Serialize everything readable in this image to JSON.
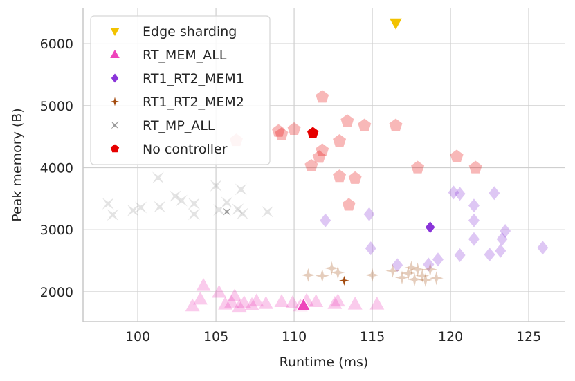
{
  "chart_data": {
    "type": "scatter",
    "title": "",
    "xlabel": "Runtime (ms)",
    "ylabel": "Peak memory (B)",
    "xlim": [
      96.5,
      127.3
    ],
    "ylim": [
      1520,
      6570
    ],
    "xticks": [
      100,
      105,
      110,
      115,
      120,
      125
    ],
    "yticks": [
      2000,
      3000,
      4000,
      5000,
      6000
    ],
    "grid": true,
    "legend_position": "top-left",
    "series": [
      {
        "name": "Edge sharding",
        "color": "#f2c200",
        "marker": "triangle-down",
        "faded_points": [],
        "highlight": {
          "x": 116.5,
          "y": 6330
        }
      },
      {
        "name": "RT_MEM_ALL",
        "color": "#ee44bb",
        "marker": "triangle-up",
        "faded_points": [
          [
            103.5,
            1770
          ],
          [
            104.0,
            1880
          ],
          [
            104.2,
            2100
          ],
          [
            105.2,
            1990
          ],
          [
            105.6,
            1800
          ],
          [
            106.0,
            1830
          ],
          [
            106.2,
            1930
          ],
          [
            106.5,
            1760
          ],
          [
            106.8,
            1820
          ],
          [
            107.3,
            1790
          ],
          [
            107.6,
            1850
          ],
          [
            108.2,
            1810
          ],
          [
            109.2,
            1840
          ],
          [
            109.9,
            1820
          ],
          [
            110.4,
            1770
          ],
          [
            110.8,
            1860
          ],
          [
            111.4,
            1840
          ],
          [
            112.6,
            1810
          ],
          [
            112.8,
            1850
          ],
          [
            113.9,
            1800
          ],
          [
            115.3,
            1800
          ]
        ],
        "highlight": {
          "x": 110.6,
          "y": 1780
        }
      },
      {
        "name": "RT1_RT2_MEM1",
        "color": "#8a35d9",
        "marker": "diamond",
        "faded_points": [
          [
            112.0,
            3150
          ],
          [
            114.8,
            3250
          ],
          [
            114.9,
            2700
          ],
          [
            116.6,
            2430
          ],
          [
            118.6,
            2440
          ],
          [
            119.2,
            2520
          ],
          [
            120.2,
            3600
          ],
          [
            120.6,
            3580
          ],
          [
            120.6,
            2590
          ],
          [
            121.5,
            3390
          ],
          [
            121.5,
            3150
          ],
          [
            121.5,
            2850
          ],
          [
            122.5,
            2600
          ],
          [
            122.8,
            3590
          ],
          [
            123.2,
            2660
          ],
          [
            123.3,
            2850
          ],
          [
            123.5,
            2980
          ],
          [
            125.9,
            2710
          ]
        ],
        "highlight": {
          "x": 118.7,
          "y": 3040
        }
      },
      {
        "name": "RT1_RT2_MEM2",
        "color": "#a34b0f",
        "marker": "star4",
        "faded_points": [
          [
            110.9,
            2270
          ],
          [
            111.8,
            2260
          ],
          [
            112.4,
            2380
          ],
          [
            112.8,
            2310
          ],
          [
            115.0,
            2270
          ],
          [
            116.3,
            2340
          ],
          [
            116.9,
            2230
          ],
          [
            117.3,
            2300
          ],
          [
            117.5,
            2390
          ],
          [
            117.7,
            2200
          ],
          [
            117.9,
            2360
          ],
          [
            118.2,
            2260
          ],
          [
            118.4,
            2190
          ],
          [
            118.7,
            2360
          ],
          [
            119.1,
            2220
          ]
        ],
        "highlight": {
          "x": 113.2,
          "y": 2180
        }
      },
      {
        "name": "RT_MP_ALL",
        "color": "#999999",
        "marker": "hourglass",
        "faded_points": [
          [
            98.1,
            3420
          ],
          [
            98.4,
            3240
          ],
          [
            99.7,
            3310
          ],
          [
            100.2,
            3360
          ],
          [
            101.3,
            3840
          ],
          [
            101.4,
            3370
          ],
          [
            102.4,
            3540
          ],
          [
            102.8,
            3470
          ],
          [
            103.6,
            3420
          ],
          [
            103.6,
            3250
          ],
          [
            105.0,
            3710
          ],
          [
            105.2,
            3320
          ],
          [
            105.7,
            3440
          ],
          [
            106.4,
            3330
          ],
          [
            106.6,
            3650
          ],
          [
            106.7,
            3260
          ],
          [
            108.3,
            3290
          ]
        ],
        "highlight": {
          "x": 105.7,
          "y": 3290
        }
      },
      {
        "name": "No controller",
        "color": "#e60000",
        "marker": "pentagon",
        "faded_points": [
          [
            106.3,
            4440
          ],
          [
            109.0,
            4590
          ],
          [
            109.2,
            4540
          ],
          [
            110.0,
            4620
          ],
          [
            111.1,
            4030
          ],
          [
            111.6,
            4170
          ],
          [
            111.8,
            5140
          ],
          [
            111.8,
            4280
          ],
          [
            112.9,
            4430
          ],
          [
            112.9,
            3860
          ],
          [
            113.4,
            4750
          ],
          [
            113.5,
            3400
          ],
          [
            113.9,
            3830
          ],
          [
            114.5,
            4680
          ],
          [
            116.5,
            4680
          ],
          [
            117.9,
            4000
          ],
          [
            120.4,
            4180
          ],
          [
            121.6,
            4000
          ]
        ],
        "highlight": {
          "x": 111.2,
          "y": 4560
        }
      }
    ]
  }
}
